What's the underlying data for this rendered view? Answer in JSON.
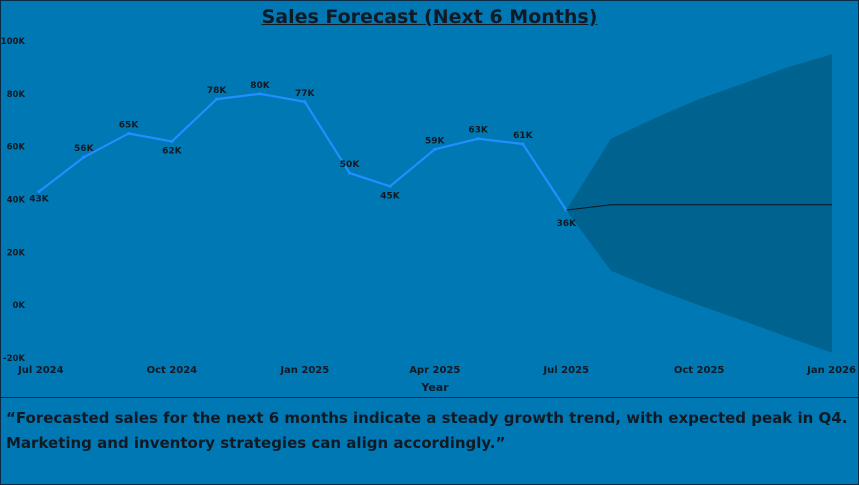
{
  "title": "Sales Forecast (Next 6 Months)",
  "commentary": "“Forecasted sales for the next 6 months indicate a steady growth trend, with expected peak in Q4. Marketing and inventory strategies can align accordingly.”",
  "colors": {
    "background": "#0078b4",
    "line": "#1e90ff",
    "forecast_band": "#00628f",
    "forecast_line": "#0b1620",
    "text": "#111a24"
  },
  "chart_data": {
    "type": "line",
    "title": "Sales Forecast (Next 6 Months)",
    "xlabel": "Year",
    "ylabel": "",
    "ylim": [
      -20000,
      100000
    ],
    "y_ticks": [
      -20000,
      0,
      20000,
      40000,
      60000,
      80000,
      100000
    ],
    "y_tick_labels": [
      "-20K",
      "0K",
      "20K",
      "40K",
      "60K",
      "80K",
      "100K"
    ],
    "x_ticks": [
      "2024-07-01",
      "2024-10-01",
      "2025-01-01",
      "2025-04-01",
      "2025-07-01",
      "2025-10-01",
      "2026-01-01"
    ],
    "x_tick_labels": [
      "Jul 2024",
      "Oct 2024",
      "Jan 2025",
      "Apr 2025",
      "Jul 2025",
      "Oct 2025",
      "Jan 2026"
    ],
    "xlim": [
      "2024-07-01",
      "2026-01-01"
    ],
    "grid": false,
    "series": [
      {
        "kind": "actual",
        "points": [
          {
            "x": "2024-07-01",
            "y": 43000,
            "label": "43K"
          },
          {
            "x": "2024-08-01",
            "y": 56000,
            "label": "56K"
          },
          {
            "x": "2024-09-01",
            "y": 65000,
            "label": "65K"
          },
          {
            "x": "2024-10-01",
            "y": 62000,
            "label": "62K"
          },
          {
            "x": "2024-11-01",
            "y": 78000,
            "label": "78K"
          },
          {
            "x": "2024-12-01",
            "y": 80000,
            "label": "80K"
          },
          {
            "x": "2025-01-01",
            "y": 77000,
            "label": "77K"
          },
          {
            "x": "2025-02-01",
            "y": 50000,
            "label": "50K"
          },
          {
            "x": "2025-03-01",
            "y": 45000,
            "label": "45K"
          },
          {
            "x": "2025-04-01",
            "y": 59000,
            "label": "59K"
          },
          {
            "x": "2025-05-01",
            "y": 63000,
            "label": "63K"
          },
          {
            "x": "2025-06-01",
            "y": 61000,
            "label": "61K"
          },
          {
            "x": "2025-07-01",
            "y": 36000,
            "label": "36K"
          }
        ]
      },
      {
        "kind": "forecast",
        "points": [
          {
            "x": "2025-07-01",
            "y": 36000
          },
          {
            "x": "2025-08-01",
            "y": 38000
          },
          {
            "x": "2026-01-01",
            "y": 38000
          }
        ]
      }
    ],
    "forecast_interval": [
      {
        "x": "2025-07-01",
        "lower": 36000,
        "upper": 36000
      },
      {
        "x": "2025-08-01",
        "lower": 13000,
        "upper": 63000
      },
      {
        "x": "2025-09-01",
        "lower": 6000,
        "upper": 71000
      },
      {
        "x": "2025-10-01",
        "lower": 0,
        "upper": 78000
      },
      {
        "x": "2025-11-01",
        "lower": -6000,
        "upper": 84000
      },
      {
        "x": "2025-12-01",
        "lower": -12000,
        "upper": 90000
      },
      {
        "x": "2026-01-01",
        "lower": -18000,
        "upper": 95000
      }
    ]
  }
}
